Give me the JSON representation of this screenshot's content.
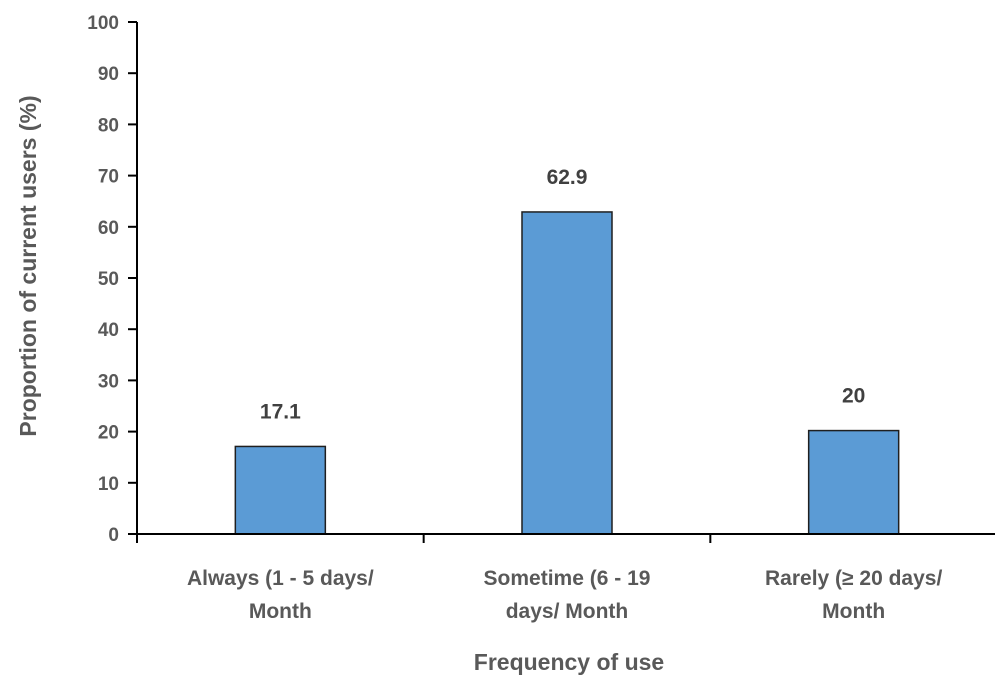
{
  "chart_data": {
    "type": "bar",
    "title": "",
    "xlabel": "Frequency of use",
    "ylabel": "Proportion of  current users  (%)",
    "ylim": [
      0,
      100
    ],
    "ytick_step": 10,
    "grid": false,
    "legend": "none",
    "categories": [
      [
        "Always (1 - 5 days/",
        "Month"
      ],
      [
        "Sometime (6 - 19",
        "days/ Month"
      ],
      [
        "Rarely (≥ 20 days/",
        "Month"
      ]
    ],
    "values": [
      17.1,
      62.9,
      20.2
    ],
    "data_labels": [
      "17.1",
      "62.9",
      "20"
    ],
    "colors": {
      "bar_fill": "#5b9bd5",
      "bar_stroke": "#1f1f1f",
      "axis": "#000000"
    }
  }
}
